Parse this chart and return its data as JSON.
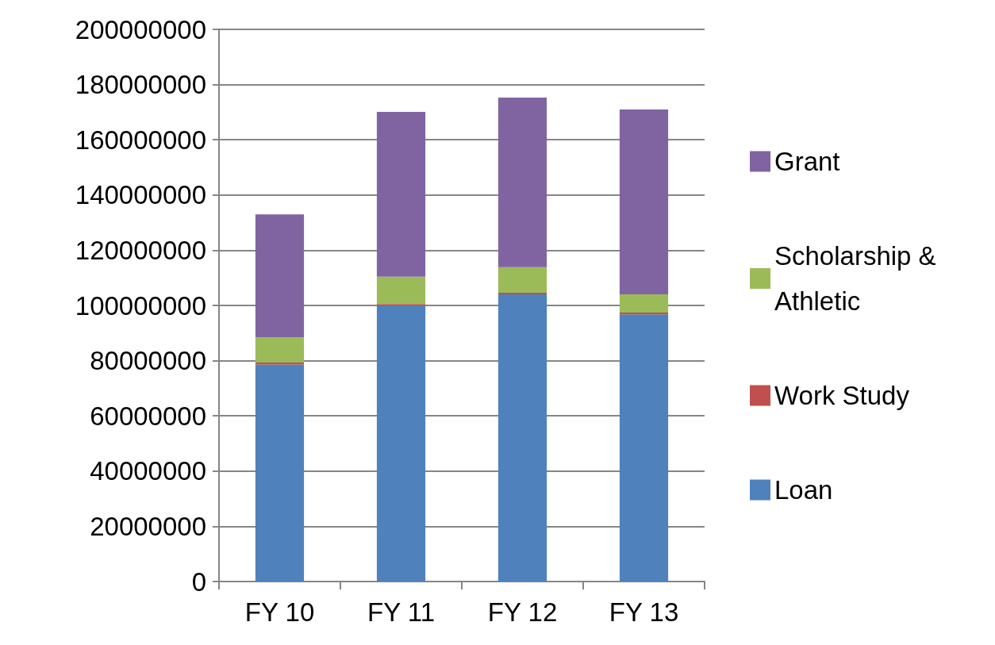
{
  "chart_data": {
    "type": "bar",
    "stacked": true,
    "categories": [
      "FY 10",
      "FY 11",
      "FY 12",
      "FY 13"
    ],
    "series": [
      {
        "name": "Loan",
        "color": "#4f81bd",
        "values": [
          78600000,
          99900000,
          104000000,
          96800000
        ]
      },
      {
        "name": "Work Study",
        "color": "#c0504d",
        "values": [
          700000,
          600000,
          600000,
          600000
        ]
      },
      {
        "name": "Scholarship & Athletic",
        "color": "#9bbb59",
        "values": [
          9100000,
          9900000,
          9300000,
          6600000
        ]
      },
      {
        "name": "Grant",
        "color": "#8064a2",
        "values": [
          44600000,
          59700000,
          61400000,
          67000000
        ]
      }
    ],
    "ylim": [
      0,
      200000000
    ],
    "yticks": [
      0,
      20000000,
      40000000,
      60000000,
      80000000,
      100000000,
      120000000,
      140000000,
      160000000,
      180000000,
      200000000
    ],
    "grid": "y",
    "legend": "right"
  }
}
